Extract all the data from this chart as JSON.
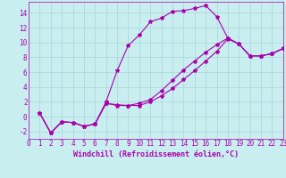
{
  "xlabel": "Windchill (Refroidissement éolien,°C)",
  "background_color": "#c8eef0",
  "grid_color": "#b0d8da",
  "line_color": "#aa00aa",
  "xlim": [
    0,
    23
  ],
  "ylim": [
    -3,
    15.5
  ],
  "xticks": [
    0,
    1,
    2,
    3,
    4,
    5,
    6,
    7,
    8,
    9,
    10,
    11,
    12,
    13,
    14,
    15,
    16,
    17,
    18,
    19,
    20,
    21,
    22,
    23
  ],
  "yticks": [
    -2,
    0,
    2,
    4,
    6,
    8,
    10,
    12,
    14
  ],
  "series1_x": [
    1,
    2,
    3,
    4,
    5,
    6,
    7,
    8,
    9,
    10,
    11,
    12,
    13,
    14,
    15,
    16,
    17,
    18,
    19,
    20,
    21,
    22,
    23
  ],
  "series1_y": [
    0.5,
    -2.2,
    -0.7,
    -0.8,
    -1.3,
    -1.0,
    2.0,
    6.2,
    9.6,
    11.0,
    12.8,
    13.3,
    14.2,
    14.3,
    14.6,
    15.0,
    13.5,
    10.6,
    9.8,
    8.2,
    8.2,
    8.5,
    9.2
  ],
  "series2_x": [
    1,
    2,
    3,
    4,
    5,
    6,
    7,
    8,
    9,
    10,
    11,
    12,
    13,
    14,
    15,
    16,
    17,
    18,
    19,
    20,
    21,
    22,
    23
  ],
  "series2_y": [
    0.5,
    -2.2,
    -0.7,
    -0.8,
    -1.3,
    -1.0,
    1.8,
    1.6,
    1.5,
    1.8,
    2.3,
    3.5,
    4.9,
    6.3,
    7.5,
    8.7,
    9.7,
    10.6,
    9.8,
    8.2,
    8.2,
    8.5,
    9.2
  ],
  "series3_x": [
    1,
    2,
    3,
    4,
    5,
    6,
    7,
    8,
    9,
    10,
    11,
    12,
    13,
    14,
    15,
    16,
    17,
    18,
    19,
    20,
    21,
    22,
    23
  ],
  "series3_y": [
    0.5,
    -2.2,
    -0.7,
    -0.8,
    -1.3,
    -1.0,
    1.8,
    1.5,
    1.5,
    1.5,
    2.0,
    2.8,
    3.8,
    5.0,
    6.2,
    7.5,
    8.8,
    10.5,
    9.8,
    8.2,
    8.2,
    8.5,
    9.2
  ],
  "marker": "*",
  "markersize": 3,
  "linewidth": 0.8,
  "xlabel_fontsize": 6,
  "tick_fontsize": 5.5
}
